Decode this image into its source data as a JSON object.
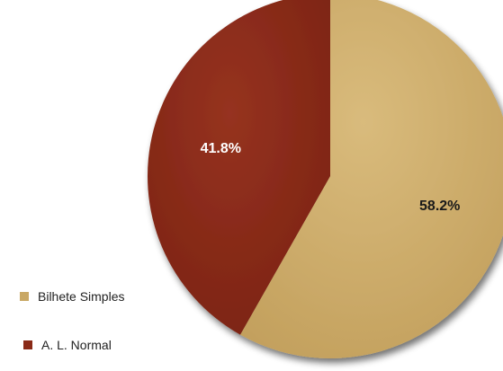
{
  "chart_data": {
    "type": "pie",
    "title": "",
    "categories": [
      "Bilhete Simples",
      "A. L. Normal"
    ],
    "values": [
      58.2,
      41.8
    ],
    "labels": [
      "58.2%",
      "41.8%"
    ],
    "colors": [
      "#C9A865",
      "#8A2A17"
    ],
    "label_colors": [
      "#1a1a1a",
      "#ffffff"
    ],
    "legend_position": "bottom-left",
    "start_angle": "12 o'clock",
    "direction": "clockwise"
  },
  "legend": {
    "items": [
      {
        "label": "Bilhete Simples",
        "color": "#C9A865"
      },
      {
        "label": "A. L. Normal",
        "color": "#8A2A17"
      }
    ]
  }
}
